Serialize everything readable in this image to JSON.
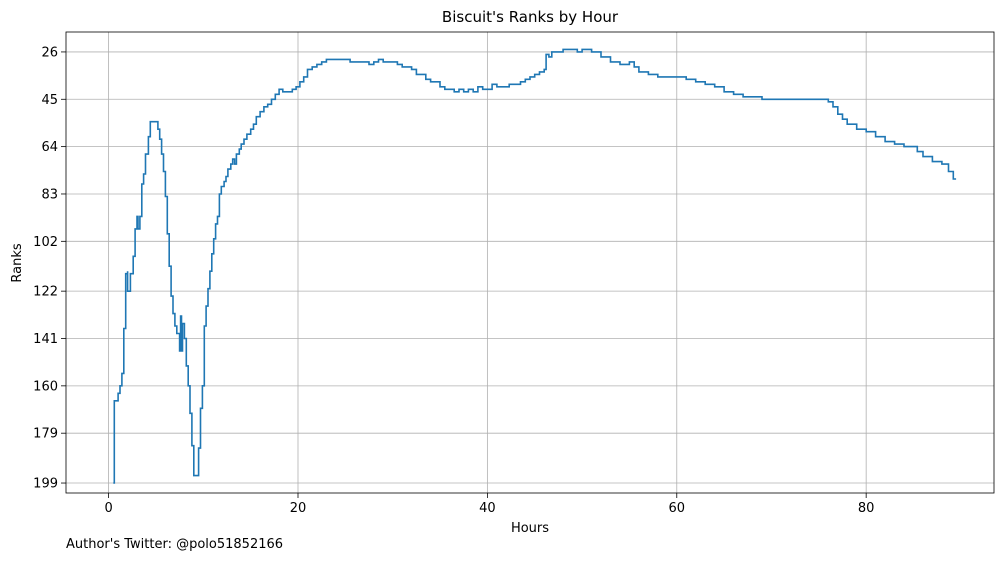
{
  "chart_data": {
    "type": "line",
    "title": "Biscuit's Ranks by Hour",
    "xlabel": "Hours",
    "ylabel": "Ranks",
    "xlim": [
      -4.5,
      93.5
    ],
    "ylim": [
      203,
      18
    ],
    "y_inverted": true,
    "grid": true,
    "x_ticks": [
      0,
      20,
      40,
      60,
      80
    ],
    "y_ticks": [
      26,
      45,
      64,
      83,
      102,
      122,
      141,
      160,
      179,
      199
    ],
    "line_color": "#1f77b4",
    "step": true,
    "series": [
      {
        "points": [
          [
            0.5,
            199
          ],
          [
            0.6,
            166
          ],
          [
            0.9,
            166
          ],
          [
            1.0,
            163
          ],
          [
            1.2,
            160
          ],
          [
            1.4,
            155
          ],
          [
            1.6,
            137
          ],
          [
            1.8,
            115
          ],
          [
            2.0,
            114
          ],
          [
            2.0,
            122
          ],
          [
            2.3,
            115
          ],
          [
            2.6,
            108
          ],
          [
            2.8,
            97
          ],
          [
            3.0,
            92
          ],
          [
            3.1,
            97
          ],
          [
            3.3,
            92
          ],
          [
            3.5,
            79
          ],
          [
            3.7,
            75
          ],
          [
            3.9,
            67
          ],
          [
            4.2,
            60
          ],
          [
            4.4,
            54
          ],
          [
            5.0,
            54
          ],
          [
            5.2,
            57
          ],
          [
            5.4,
            61
          ],
          [
            5.6,
            67
          ],
          [
            5.8,
            74
          ],
          [
            6.0,
            84
          ],
          [
            6.2,
            99
          ],
          [
            6.4,
            112
          ],
          [
            6.6,
            124
          ],
          [
            6.8,
            131
          ],
          [
            7.0,
            136
          ],
          [
            7.2,
            139
          ],
          [
            7.4,
            139
          ],
          [
            7.5,
            146
          ],
          [
            7.6,
            132
          ],
          [
            7.7,
            146
          ],
          [
            7.8,
            135
          ],
          [
            8.0,
            141
          ],
          [
            8.2,
            152
          ],
          [
            8.4,
            160
          ],
          [
            8.6,
            171
          ],
          [
            8.8,
            184
          ],
          [
            9.0,
            196
          ],
          [
            9.3,
            196
          ],
          [
            9.5,
            185
          ],
          [
            9.7,
            169
          ],
          [
            9.9,
            160
          ],
          [
            10.1,
            136
          ],
          [
            10.3,
            128
          ],
          [
            10.5,
            121
          ],
          [
            10.7,
            114
          ],
          [
            10.9,
            107
          ],
          [
            11.1,
            101
          ],
          [
            11.3,
            95
          ],
          [
            11.5,
            92
          ],
          [
            11.7,
            83
          ],
          [
            11.9,
            80
          ],
          [
            12.2,
            78
          ],
          [
            12.4,
            76
          ],
          [
            12.6,
            73
          ],
          [
            12.9,
            71
          ],
          [
            13.1,
            69
          ],
          [
            13.3,
            71
          ],
          [
            13.5,
            67
          ],
          [
            13.8,
            65
          ],
          [
            14.0,
            63
          ],
          [
            14.3,
            61
          ],
          [
            14.6,
            59
          ],
          [
            15.0,
            57
          ],
          [
            15.3,
            55
          ],
          [
            15.6,
            52
          ],
          [
            16.0,
            50
          ],
          [
            16.4,
            48
          ],
          [
            16.8,
            47
          ],
          [
            17.2,
            45
          ],
          [
            17.6,
            43
          ],
          [
            18.0,
            41
          ],
          [
            18.4,
            42
          ],
          [
            19.0,
            42
          ],
          [
            19.4,
            41
          ],
          [
            19.8,
            40
          ],
          [
            20.2,
            38
          ],
          [
            20.6,
            36
          ],
          [
            21.0,
            33
          ],
          [
            21.5,
            32
          ],
          [
            22.0,
            31
          ],
          [
            22.5,
            30
          ],
          [
            23.0,
            29
          ],
          [
            25.0,
            29
          ],
          [
            25.5,
            30
          ],
          [
            27.0,
            30
          ],
          [
            27.5,
            31
          ],
          [
            28.0,
            30
          ],
          [
            28.5,
            29
          ],
          [
            29.0,
            30
          ],
          [
            30.0,
            30
          ],
          [
            30.5,
            31
          ],
          [
            31.0,
            32
          ],
          [
            32.0,
            33
          ],
          [
            32.5,
            35
          ],
          [
            33.5,
            37
          ],
          [
            34.0,
            38
          ],
          [
            35.0,
            40
          ],
          [
            35.5,
            41
          ],
          [
            36.5,
            42
          ],
          [
            37.0,
            41
          ],
          [
            37.5,
            42
          ],
          [
            38.0,
            41
          ],
          [
            38.5,
            42
          ],
          [
            39.0,
            40
          ],
          [
            39.5,
            41
          ],
          [
            40.5,
            39
          ],
          [
            41.0,
            40
          ],
          [
            42.0,
            40
          ],
          [
            42.3,
            39
          ],
          [
            43.5,
            38
          ],
          [
            44.0,
            37
          ],
          [
            44.5,
            36
          ],
          [
            45.0,
            35
          ],
          [
            45.5,
            34
          ],
          [
            46.0,
            33
          ],
          [
            46.2,
            27
          ],
          [
            46.5,
            28
          ],
          [
            46.8,
            26
          ],
          [
            47.0,
            26
          ],
          [
            48.0,
            25
          ],
          [
            49.0,
            25
          ],
          [
            49.5,
            26
          ],
          [
            50.0,
            25
          ],
          [
            51.0,
            26
          ],
          [
            52.0,
            28
          ],
          [
            53.0,
            30
          ],
          [
            54.0,
            31
          ],
          [
            55.0,
            30
          ],
          [
            55.5,
            32
          ],
          [
            56.0,
            34
          ],
          [
            57.0,
            35
          ],
          [
            58.0,
            36
          ],
          [
            59.0,
            36
          ],
          [
            60.0,
            36
          ],
          [
            61.0,
            37
          ],
          [
            62.0,
            38
          ],
          [
            63.0,
            39
          ],
          [
            64.0,
            40
          ],
          [
            65.0,
            42
          ],
          [
            66.0,
            43
          ],
          [
            67.0,
            44
          ],
          [
            69.0,
            45
          ],
          [
            76.0,
            46
          ],
          [
            76.5,
            48
          ],
          [
            77.0,
            51
          ],
          [
            77.5,
            53
          ],
          [
            78.0,
            55
          ],
          [
            79.0,
            57
          ],
          [
            80.0,
            58
          ],
          [
            81.0,
            60
          ],
          [
            82.0,
            62
          ],
          [
            83.0,
            63
          ],
          [
            84.0,
            64
          ],
          [
            85.0,
            64
          ],
          [
            85.4,
            66
          ],
          [
            86.0,
            68
          ],
          [
            87.0,
            70
          ],
          [
            88.0,
            71
          ],
          [
            88.7,
            74
          ],
          [
            89.2,
            77
          ],
          [
            89.5,
            77
          ]
        ]
      }
    ]
  },
  "footer": {
    "author_text": "Author's Twitter: @polo51852166"
  }
}
